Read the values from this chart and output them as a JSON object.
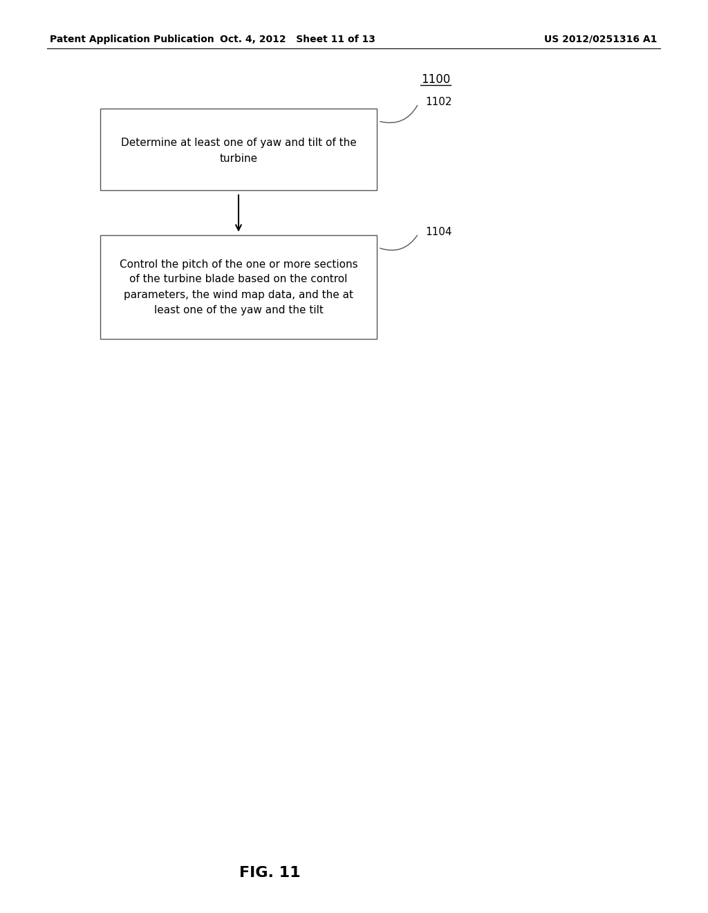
{
  "background_color": "#ffffff",
  "header_left": "Patent Application Publication",
  "header_mid": "Oct. 4, 2012   Sheet 11 of 13",
  "header_right": "US 2012/0251316 A1",
  "diagram_label": "1100",
  "box1_label": "1102",
  "box1_text_line1": "Determine at least one of yaw and tilt of the",
  "box1_text_line2": "turbine",
  "box2_label": "1104",
  "box2_text_line1": "Control the pitch of the one or more sections",
  "box2_text_line2": "of the turbine blade based on the control",
  "box2_text_line3": "parameters, the wind map data, and the at",
  "box2_text_line4": "least one of the yaw and the tilt",
  "fig_label": "FIG. 11",
  "text_color": "#000000",
  "box_edge_color": "#555555",
  "arrow_color": "#000000"
}
